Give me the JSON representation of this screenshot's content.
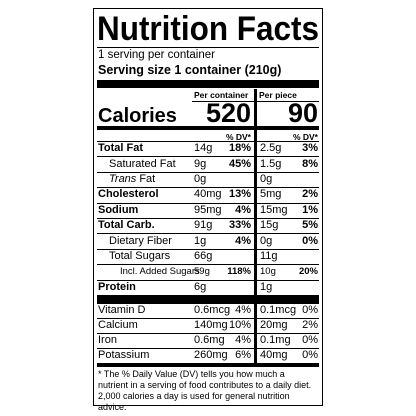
{
  "title": "Nutrition Facts",
  "servings": "1 serving per container",
  "serving_size": "Serving size 1 container (210g)",
  "columns": [
    "Per container",
    "Per piece"
  ],
  "calories": {
    "label": "Calories",
    "values": [
      "520",
      "90"
    ]
  },
  "dv_header": [
    "% DV*",
    "% DV*"
  ],
  "nutrients": [
    {
      "name": "Total Fat",
      "bold": true,
      "indent": 0,
      "values": [
        {
          "amount": "14g",
          "dv": "18%"
        },
        {
          "amount": "2.5g",
          "dv": "3%"
        }
      ]
    },
    {
      "name": "Saturated Fat",
      "bold": false,
      "indent": 1,
      "values": [
        {
          "amount": "9g",
          "dv": "45%"
        },
        {
          "amount": "1.5g",
          "dv": "8%"
        }
      ]
    },
    {
      "prefix_italic": "Trans",
      "name": "Fat",
      "bold": false,
      "indent": 1,
      "values": [
        {
          "amount": "0g"
        },
        {
          "amount": "0g"
        }
      ]
    },
    {
      "name": "Cholesterol",
      "bold": true,
      "indent": 0,
      "values": [
        {
          "amount": "40mg",
          "dv": "13%"
        },
        {
          "amount": "5mg",
          "dv": "2%"
        }
      ]
    },
    {
      "name": "Sodium",
      "bold": true,
      "indent": 0,
      "values": [
        {
          "amount": "95mg",
          "dv": "4%"
        },
        {
          "amount": "15mg",
          "dv": "1%"
        }
      ]
    },
    {
      "name": "Total Carb.",
      "bold": true,
      "indent": 0,
      "values": [
        {
          "amount": "91g",
          "dv": "33%"
        },
        {
          "amount": "15g",
          "dv": "5%"
        }
      ]
    },
    {
      "name": "Dietary Fiber",
      "bold": false,
      "indent": 1,
      "values": [
        {
          "amount": "1g",
          "dv": "4%"
        },
        {
          "amount": "0g",
          "dv": "0%"
        }
      ]
    },
    {
      "name": "Total Sugars",
      "bold": false,
      "indent": 1,
      "values": [
        {
          "amount": "66g"
        },
        {
          "amount": "11g"
        }
      ]
    },
    {
      "name": "Incl. Added Sugars",
      "bold": false,
      "indent": 2,
      "small": true,
      "values": [
        {
          "amount": "59g",
          "dv": "118%"
        },
        {
          "amount": "10g",
          "dv": "20%"
        }
      ]
    },
    {
      "name": "Protein",
      "bold": true,
      "indent": 0,
      "values": [
        {
          "amount": "6g"
        },
        {
          "amount": "1g"
        }
      ]
    }
  ],
  "micronutrients": [
    {
      "name": "Vitamin D",
      "values": [
        {
          "amount": "0.6mcg",
          "dv": "4%"
        },
        {
          "amount": "0.1mcg",
          "dv": "0%"
        }
      ]
    },
    {
      "name": "Calcium",
      "values": [
        {
          "amount": "140mg",
          "dv": "10%"
        },
        {
          "amount": "20mg",
          "dv": "2%"
        }
      ]
    },
    {
      "name": "Iron",
      "values": [
        {
          "amount": "0.6mg",
          "dv": "4%"
        },
        {
          "amount": "0.1mg",
          "dv": "0%"
        }
      ]
    },
    {
      "name": "Potassium",
      "values": [
        {
          "amount": "260mg",
          "dv": "6%"
        },
        {
          "amount": "40mg",
          "dv": "0%"
        }
      ]
    }
  ],
  "footnote": "* The % Daily Value (DV) tells you how much a nutrient in a serving of food contributes to a daily diet. 2,000 calories a day is used for general nutrition advice."
}
